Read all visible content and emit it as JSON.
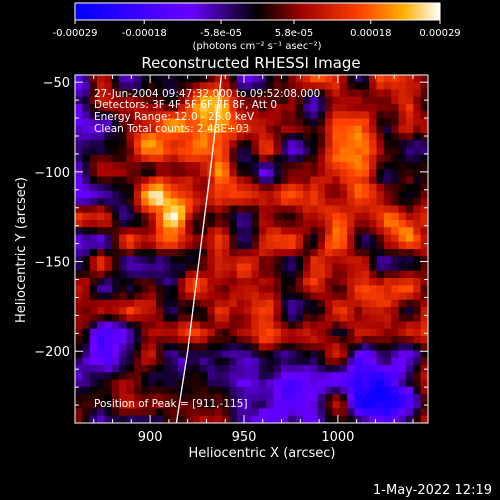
{
  "chart_data": {
    "type": "heatmap",
    "title": "Reconstructed RHESSI Image",
    "xlabel": "Heliocentric X (arcsec)",
    "ylabel": "Heliocentric Y (arcsec)",
    "xlim": [
      860,
      1048
    ],
    "ylim": [
      -240,
      -46
    ],
    "x_ticks": [
      900,
      950,
      1000
    ],
    "y_ticks": [
      -50,
      -100,
      -150,
      -200
    ],
    "colorbar": {
      "ticks": [
        "-0.00029",
        "-0.00018",
        "-5.8e-05",
        "5.8e-05",
        "0.00018",
        "0.00029"
      ],
      "tick_values": [
        -0.00029,
        -0.00018,
        -5.8e-05,
        5.8e-05,
        0.00018,
        0.00029
      ],
      "unit_label": "(photons cm⁻² s⁻¹ asec⁻²)",
      "range": [
        -0.00029,
        0.00029
      ]
    },
    "annotations": [
      "27-Jun-2004 09:47:32.000 to 09:52:08.000",
      "Detectors: 3F 4F 5F 6F 7F 8F, Att 0",
      "Energy Range: 12.0 - 25.0 keV",
      "Clean     Total counts: 2.48E+03"
    ],
    "peak_label": "Position of Peak = [911,-115]",
    "peak": [
      911,
      -115
    ],
    "limb_curve": [
      [
        914,
        -240
      ],
      [
        920,
        -200
      ],
      [
        926,
        -150
      ],
      [
        932,
        -100
      ],
      [
        938,
        -46
      ]
    ],
    "grid": false
  },
  "footer": {
    "timestamp": "1-May-2022 12:19"
  }
}
